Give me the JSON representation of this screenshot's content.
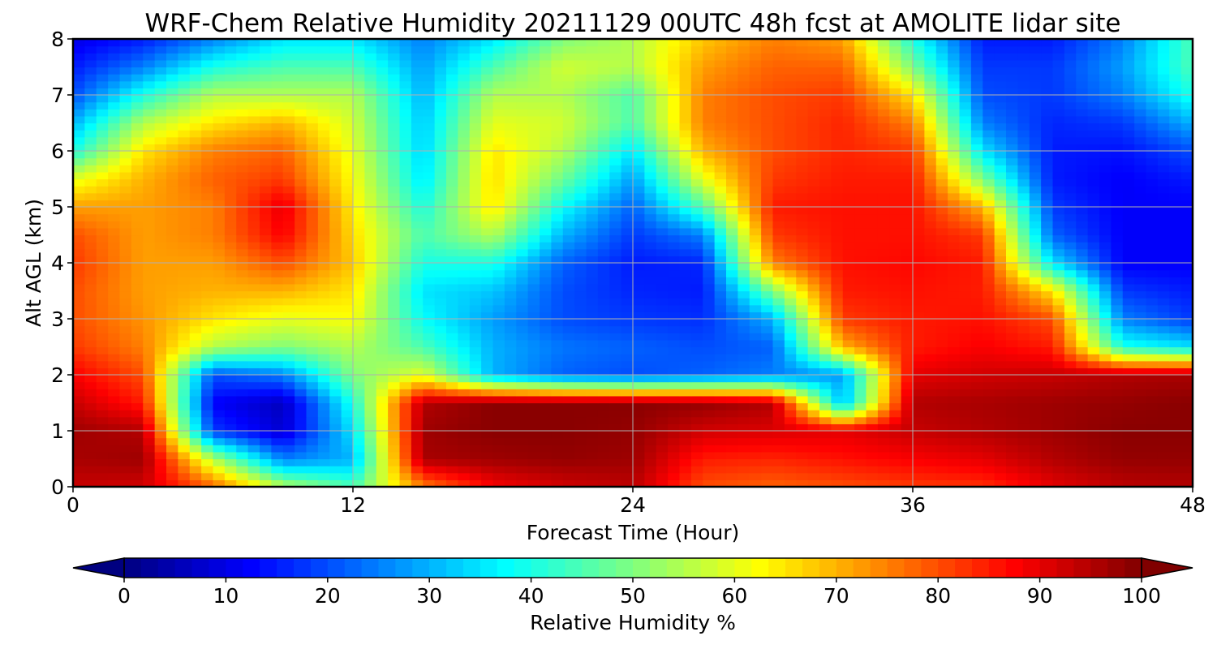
{
  "chart_data": {
    "type": "heatmap",
    "title": "WRF-Chem Relative Humidity 20211129 00UTC 48h fcst at AMOLITE lidar site",
    "xlabel": "Forecast Time (Hour)",
    "ylabel": "Alt AGL (km)",
    "xlim": [
      0,
      48
    ],
    "ylim": [
      0,
      8
    ],
    "x_ticks": [
      "0",
      "12",
      "24",
      "36",
      "48"
    ],
    "y_ticks": [
      "0",
      "1",
      "2",
      "3",
      "4",
      "5",
      "6",
      "7",
      "8"
    ],
    "grid": true,
    "colorbar": {
      "label": "Relative Humidity %",
      "orientation": "horizontal",
      "colormap": "jet",
      "range": [
        0,
        100
      ],
      "ticks": [
        "0",
        "10",
        "20",
        "30",
        "40",
        "50",
        "60",
        "70",
        "80",
        "90",
        "100"
      ],
      "extend": "both"
    },
    "x": [
      0,
      3,
      6,
      9,
      12,
      15,
      18,
      21,
      24,
      27,
      30,
      33,
      36,
      39,
      42,
      45,
      48
    ],
    "y": [
      0,
      0.5,
      1,
      1.5,
      2,
      2.5,
      3,
      3.5,
      4,
      4.5,
      5,
      5.5,
      6,
      6.5,
      7,
      7.5,
      8
    ],
    "z": [
      [
        93,
        92,
        78,
        55,
        45,
        75,
        88,
        92,
        94,
        80,
        78,
        80,
        82,
        83,
        90,
        94,
        95
      ],
      [
        96,
        97,
        55,
        25,
        30,
        96,
        97,
        98,
        97,
        85,
        84,
        86,
        88,
        90,
        95,
        98,
        98
      ],
      [
        97,
        95,
        18,
        8,
        35,
        97,
        99,
        99,
        98,
        92,
        91,
        90,
        93,
        95,
        97,
        99,
        99
      ],
      [
        93,
        85,
        12,
        6,
        40,
        95,
        99,
        99,
        99,
        98,
        95,
        30,
        95,
        96,
        97,
        98,
        99
      ],
      [
        88,
        80,
        20,
        25,
        50,
        60,
        30,
        22,
        20,
        22,
        25,
        28,
        90,
        92,
        93,
        95,
        96
      ],
      [
        82,
        75,
        55,
        50,
        55,
        45,
        30,
        24,
        22,
        20,
        22,
        70,
        85,
        88,
        85,
        40,
        35
      ],
      [
        80,
        73,
        65,
        60,
        62,
        38,
        28,
        20,
        18,
        17,
        30,
        82,
        85,
        86,
        80,
        25,
        18
      ],
      [
        80,
        72,
        70,
        70,
        65,
        35,
        32,
        20,
        16,
        15,
        50,
        85,
        86,
        85,
        65,
        18,
        15
      ],
      [
        82,
        72,
        72,
        80,
        68,
        40,
        40,
        22,
        15,
        16,
        75,
        86,
        87,
        85,
        35,
        12,
        12
      ],
      [
        80,
        72,
        75,
        88,
        66,
        45,
        55,
        30,
        18,
        25,
        82,
        86,
        86,
        82,
        22,
        12,
        12
      ],
      [
        72,
        72,
        75,
        90,
        64,
        40,
        65,
        38,
        22,
        45,
        85,
        86,
        86,
        70,
        18,
        12,
        12
      ],
      [
        60,
        70,
        78,
        82,
        62,
        35,
        66,
        48,
        28,
        60,
        82,
        85,
        85,
        50,
        15,
        12,
        15
      ],
      [
        40,
        65,
        75,
        78,
        60,
        33,
        65,
        55,
        35,
        70,
        80,
        84,
        82,
        35,
        15,
        14,
        20
      ],
      [
        30,
        55,
        65,
        70,
        58,
        32,
        60,
        58,
        45,
        75,
        80,
        84,
        75,
        25,
        16,
        18,
        30
      ],
      [
        20,
        40,
        55,
        55,
        55,
        30,
        55,
        55,
        45,
        75,
        80,
        82,
        65,
        20,
        18,
        25,
        40
      ],
      [
        15,
        25,
        40,
        45,
        45,
        28,
        45,
        58,
        55,
        72,
        78,
        78,
        50,
        18,
        18,
        28,
        45
      ],
      [
        10,
        15,
        25,
        35,
        35,
        25,
        35,
        50,
        55,
        68,
        75,
        72,
        40,
        15,
        15,
        25,
        45
      ]
    ]
  }
}
